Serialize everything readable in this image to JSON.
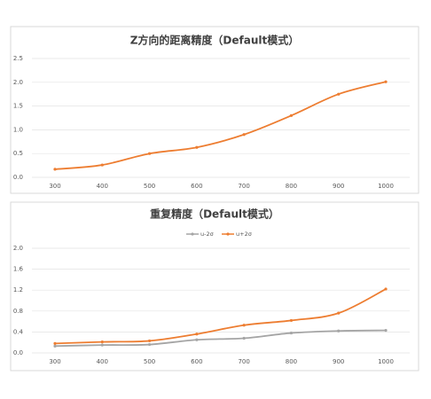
{
  "chart_data": [
    {
      "type": "line",
      "title": "Z方向的距离精度（Default模式）",
      "categories": [
        "300",
        "400",
        "500",
        "600",
        "700",
        "800",
        "900",
        "1000"
      ],
      "series": [
        {
          "name": null,
          "color": "#ed7d31",
          "values": [
            0.17,
            0.26,
            0.5,
            0.63,
            0.9,
            1.3,
            1.75,
            2.01
          ]
        }
      ],
      "ylim": [
        0,
        2.5
      ],
      "yticks": [
        {
          "value": 0,
          "label": "0.0"
        },
        0.5,
        {
          "value": 1,
          "label": "1.0"
        },
        1.5,
        {
          "value": 2,
          "label": "2.0"
        },
        2.5
      ],
      "grid": true
    },
    {
      "type": "line",
      "title": "重复精度（Default模式）",
      "categories": [
        "300",
        "400",
        "500",
        "600",
        "700",
        "800",
        "900",
        "1000"
      ],
      "series": [
        {
          "name": "u-2σ",
          "color": "#a5a5a5",
          "values": [
            0.13,
            0.15,
            0.16,
            0.25,
            0.28,
            0.38,
            0.42,
            0.43
          ]
        },
        {
          "name": "u+2σ",
          "color": "#ed7d31",
          "values": [
            0.18,
            0.21,
            0.23,
            0.36,
            0.53,
            0.62,
            0.76,
            1.22
          ]
        }
      ],
      "ylim": [
        0,
        2
      ],
      "yticks": [
        {
          "value": 0,
          "label": "0.0"
        },
        0.4,
        0.8,
        1.2,
        1.6,
        {
          "value": 2,
          "label": "2.0"
        }
      ],
      "grid": true,
      "legend": "top"
    }
  ]
}
